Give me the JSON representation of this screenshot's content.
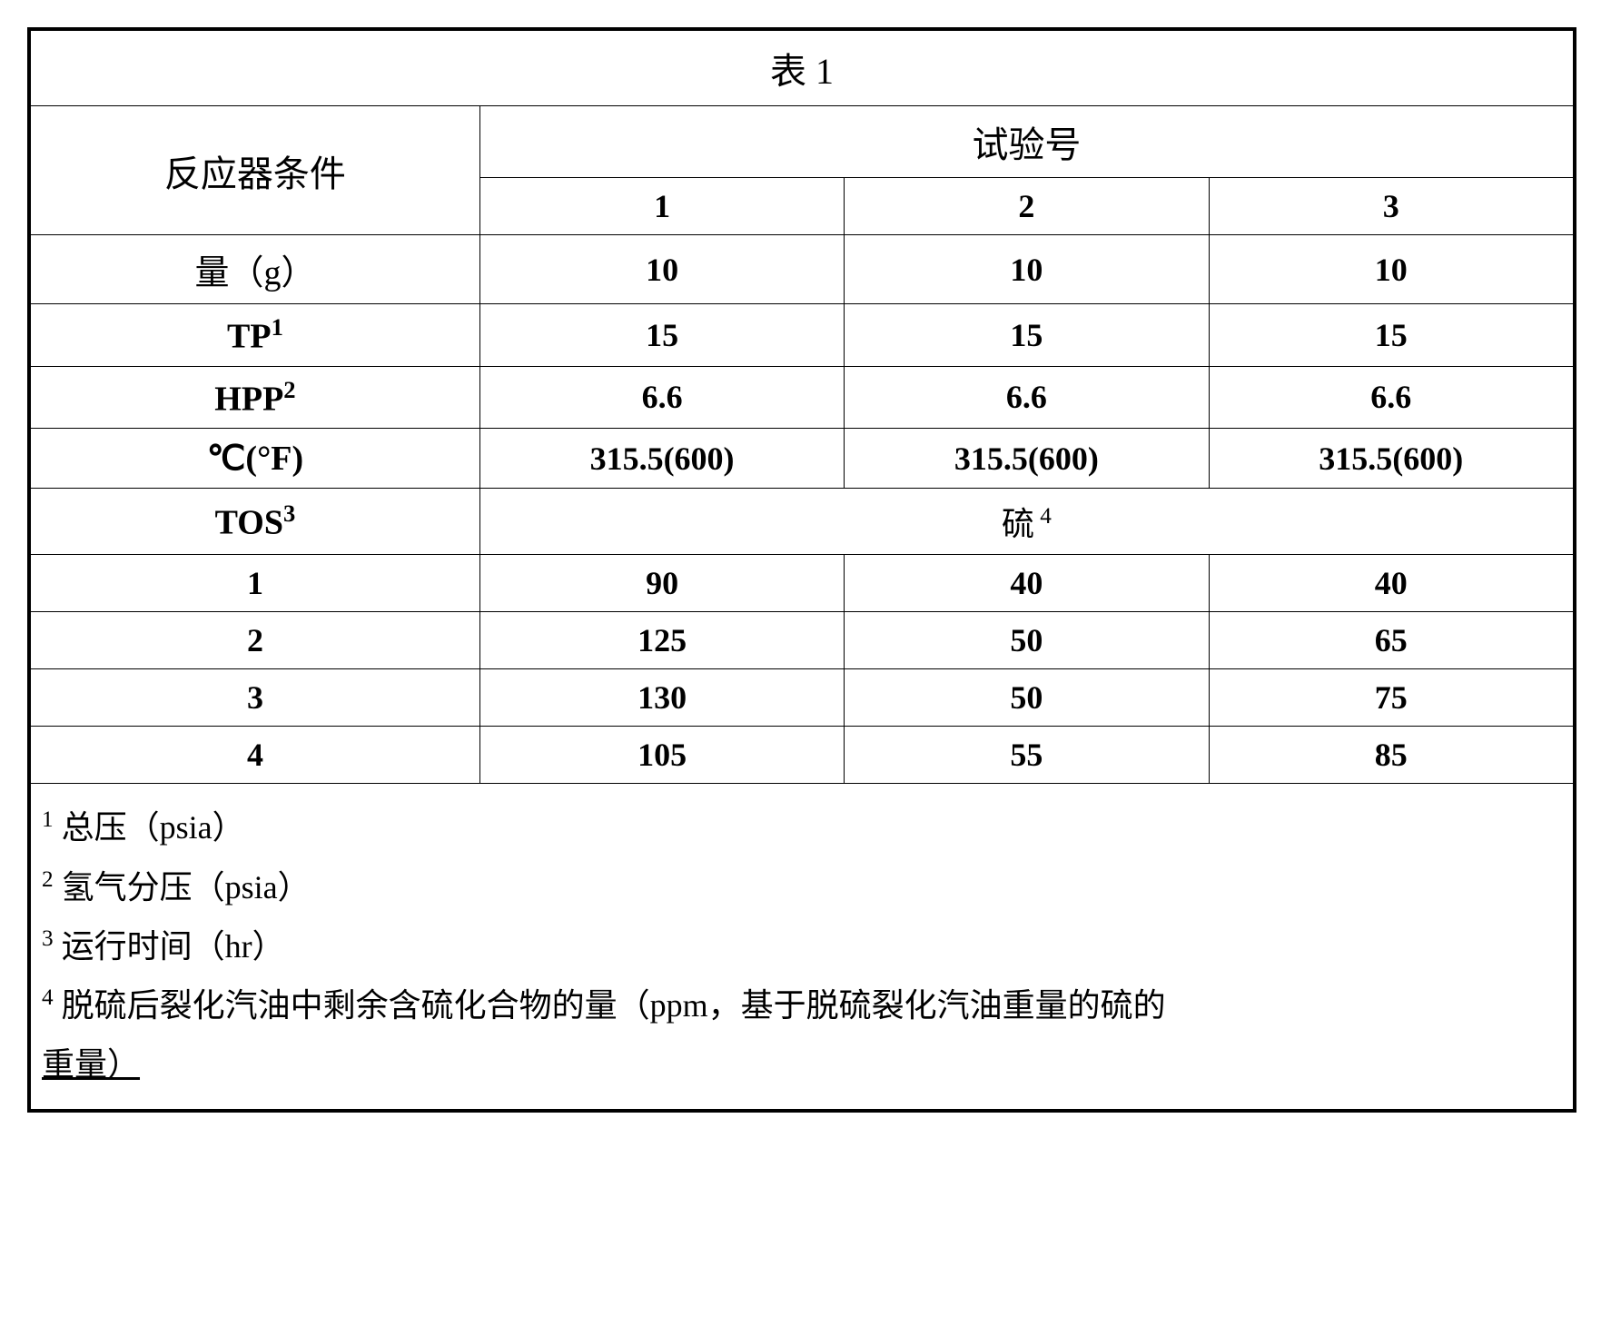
{
  "title": "表 1",
  "headers": {
    "left": "反应器条件",
    "right": "试验号",
    "col1": "1",
    "col2": "2",
    "col3": "3"
  },
  "rows": {
    "amount": {
      "label": "量（g）",
      "c1": "10",
      "c2": "10",
      "c3": "10"
    },
    "tp": {
      "label_pre": "TP",
      "label_sup": "1",
      "c1": "15",
      "c2": "15",
      "c3": "15"
    },
    "hpp": {
      "label_pre": "HPP",
      "label_sup": "2",
      "c1": "6.6",
      "c2": "6.6",
      "c3": "6.6"
    },
    "temp": {
      "label": "℃(°F)",
      "c1": "315.5(600)",
      "c2": "315.5(600)",
      "c3": "315.5(600)"
    },
    "tos": {
      "label_pre": "TOS",
      "label_sup": "3",
      "right_pre": "硫",
      "right_sup": " 4"
    },
    "r1": {
      "label": "1",
      "c1": "90",
      "c2": "40",
      "c3": "40"
    },
    "r2": {
      "label": "2",
      "c1": "125",
      "c2": "50",
      "c3": "65"
    },
    "r3": {
      "label": "3",
      "c1": "130",
      "c2": "50",
      "c3": "75"
    },
    "r4": {
      "label": "4",
      "c1": "105",
      "c2": "55",
      "c3": "85"
    }
  },
  "footnotes": {
    "f1": {
      "sup": "1",
      "text": " 总压（psia）"
    },
    "f2": {
      "sup": "2",
      "text": " 氢气分压（psia）"
    },
    "f3": {
      "sup": "3",
      "text": " 运行时间（hr）"
    },
    "f4": {
      "sup": "4",
      "text": " 脱硫后裂化汽油中剩余含硫化合物的量（ppm，基于脱硫裂化汽油重量的硫的"
    },
    "f4b": "重量）"
  },
  "style": {
    "border_color": "#000000",
    "background_color": "#ffffff",
    "text_color": "#000000",
    "title_fontsize": 40,
    "cell_fontsize": 36,
    "footnote_fontsize": 36,
    "outer_border_width": 3,
    "inner_border_width": 1.5
  }
}
